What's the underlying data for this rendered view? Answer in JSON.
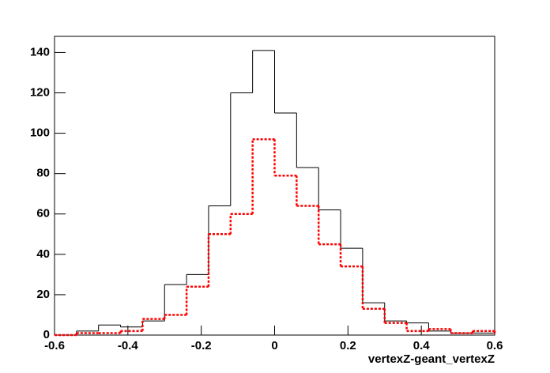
{
  "chart_data": {
    "type": "histogram",
    "xlabel": "vertexZ-geant_vertexZ",
    "bins": [
      -0.6,
      -0.54,
      -0.48,
      -0.42,
      -0.36,
      -0.3,
      -0.24,
      -0.18,
      -0.12,
      -0.06,
      0,
      0.06,
      0.12,
      0.18,
      0.24,
      0.3,
      0.36,
      0.42,
      0.48,
      0.54,
      0.6
    ],
    "series": [
      {
        "color": "#000000",
        "style": "solid",
        "values": [
          0,
          2,
          5,
          4,
          7,
          25,
          30,
          64,
          120,
          141,
          110,
          83,
          62,
          43,
          16,
          7,
          6,
          2,
          1,
          1
        ]
      },
      {
        "color": "#ff0000",
        "style": "dashed",
        "values": [
          0,
          1,
          1,
          2,
          8,
          10,
          24,
          50,
          60,
          97,
          79,
          64,
          45,
          34,
          13,
          6,
          2,
          3,
          1,
          2
        ]
      }
    ],
    "xlim": [
      -0.6,
      0.6
    ],
    "xticks": [
      -0.6,
      -0.4,
      -0.2,
      0,
      0.2,
      0.4,
      0.6
    ],
    "ylim": [
      0,
      148
    ],
    "yticks": [
      0,
      20,
      40,
      60,
      80,
      100,
      120,
      140
    ]
  }
}
